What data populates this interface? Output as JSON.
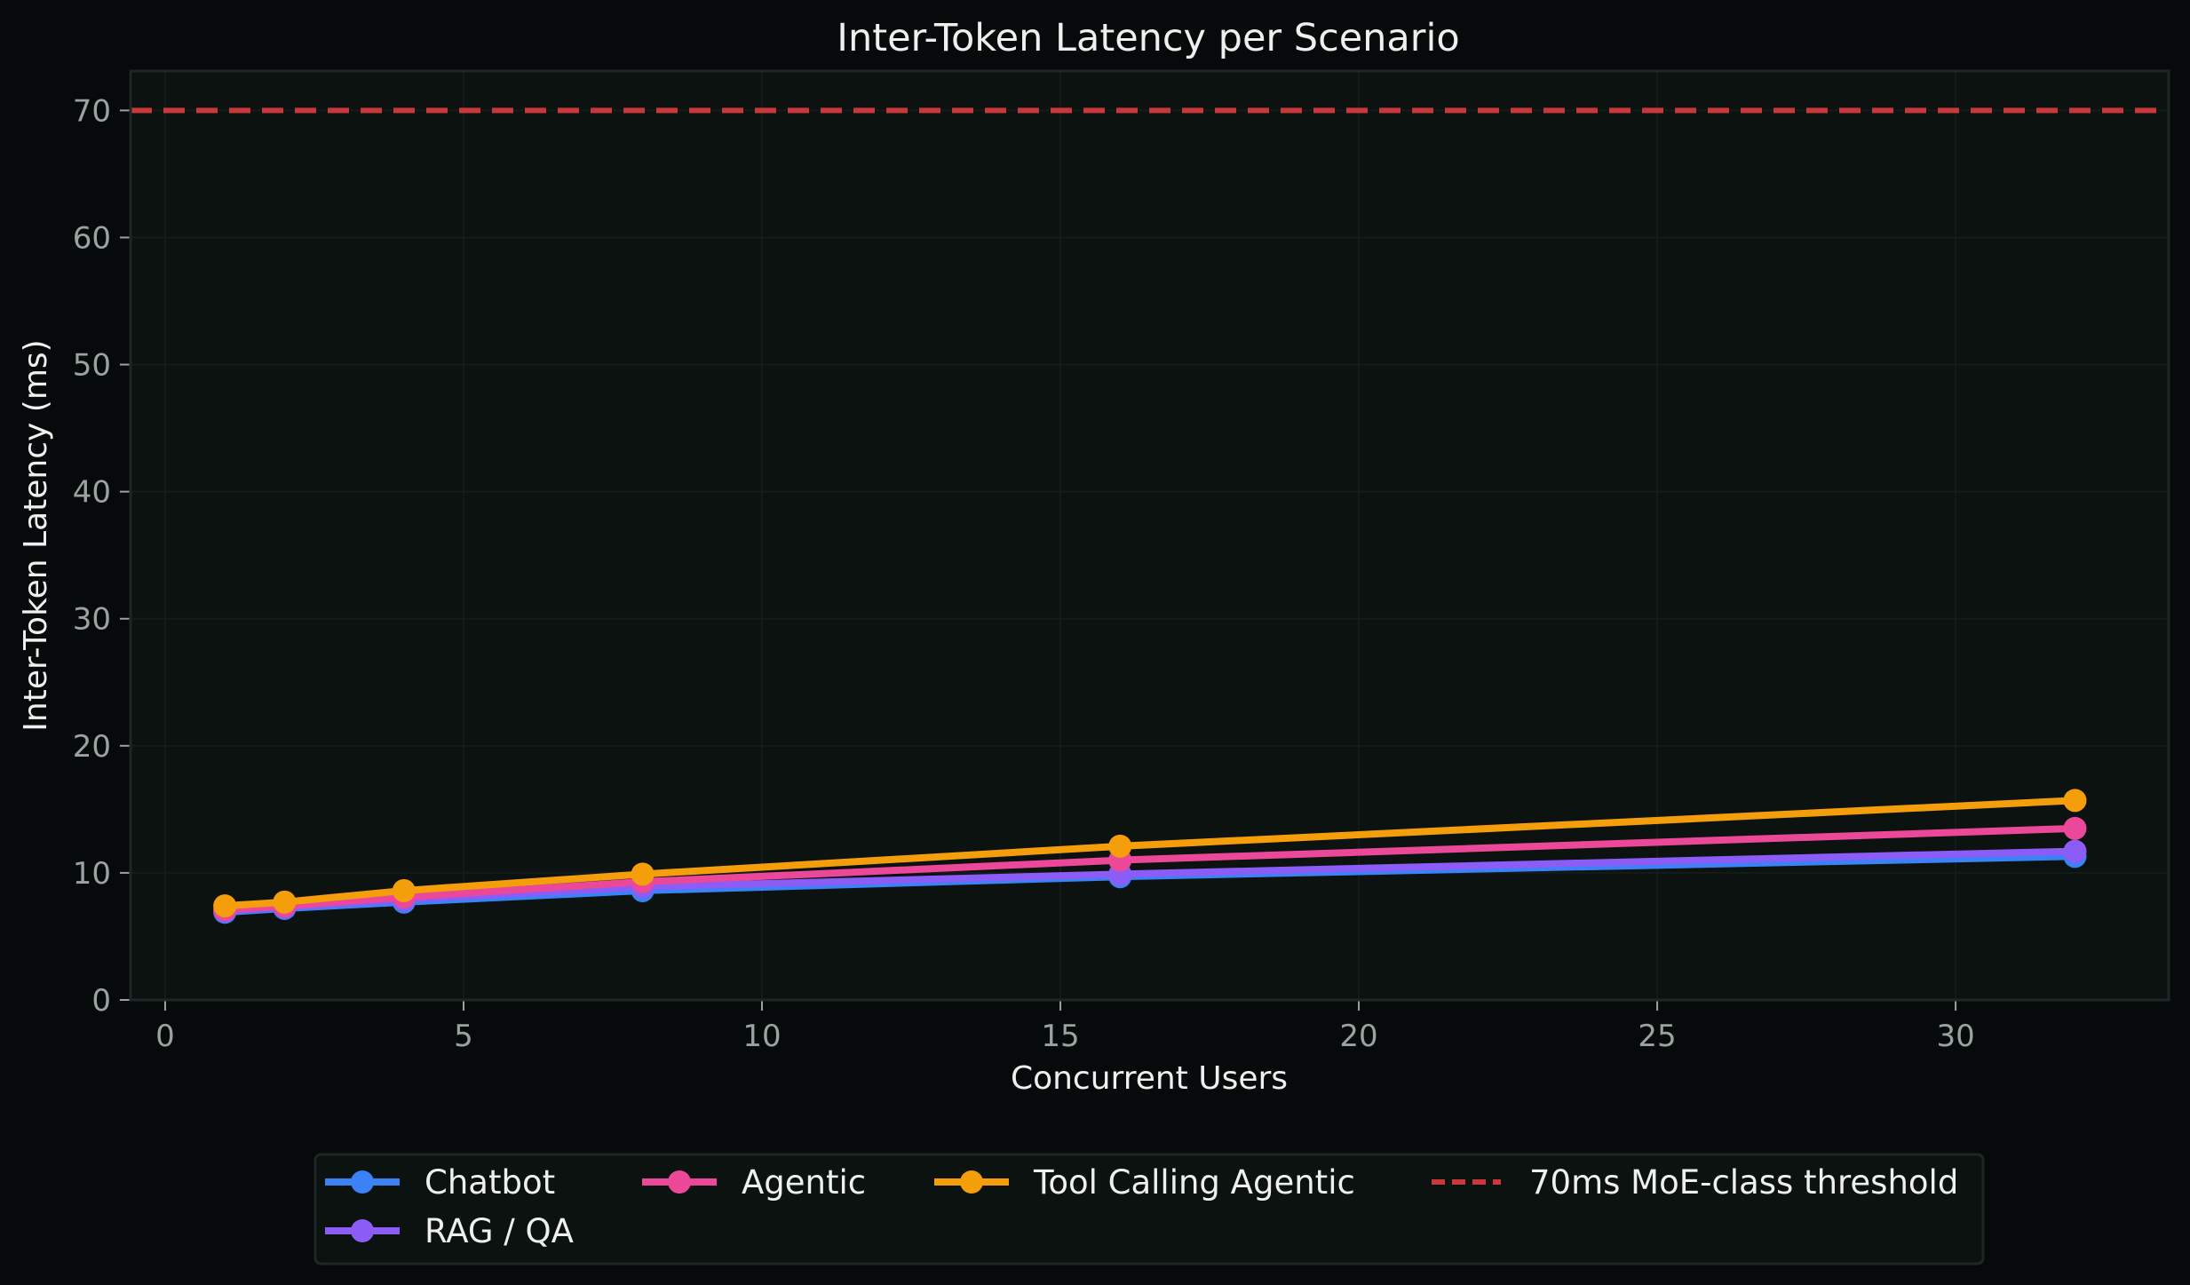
{
  "chart_data": {
    "type": "line",
    "title": "Inter-Token Latency per Scenario",
    "xlabel": "Concurrent Users",
    "ylabel": "Inter-Token Latency (ms)",
    "x": [
      1,
      2,
      4,
      8,
      16,
      32
    ],
    "xlim": [
      -0.58,
      33.57
    ],
    "ylim": [
      0,
      73.1
    ],
    "xticks": [
      0,
      5,
      10,
      15,
      20,
      25,
      30
    ],
    "yticks": [
      0,
      10,
      20,
      30,
      40,
      50,
      60,
      70
    ],
    "grid": true,
    "legend_position": "bottom-center, outside",
    "series": [
      {
        "name": "Chatbot",
        "color": "#3b82f6",
        "marker": "circle",
        "values": [
          6.9,
          7.2,
          7.7,
          8.6,
          9.7,
          11.3
        ]
      },
      {
        "name": "RAG / QA",
        "color": "#8b5cf6",
        "marker": "circle",
        "values": [
          7.0,
          7.3,
          7.9,
          8.9,
          9.9,
          11.7
        ]
      },
      {
        "name": "Agentic",
        "color": "#ec4899",
        "marker": "circle",
        "values": [
          7.1,
          7.4,
          8.1,
          9.3,
          11.0,
          13.5
        ]
      },
      {
        "name": "Tool Calling Agentic",
        "color": "#f59e0b",
        "marker": "circle",
        "values": [
          7.4,
          7.7,
          8.6,
          9.9,
          12.1,
          15.7
        ]
      }
    ],
    "reference_lines": [
      {
        "name": "70ms MoE-class threshold",
        "y": 70,
        "color": "#c9393b",
        "style": "dashed"
      }
    ]
  },
  "colors": {
    "page_bg": "#070a0a",
    "plot_bg": "#0b1210",
    "grid": "#141b19",
    "spine": "#1e2725",
    "tick_text": "#9aa3a0",
    "text": "#eef0ef"
  }
}
